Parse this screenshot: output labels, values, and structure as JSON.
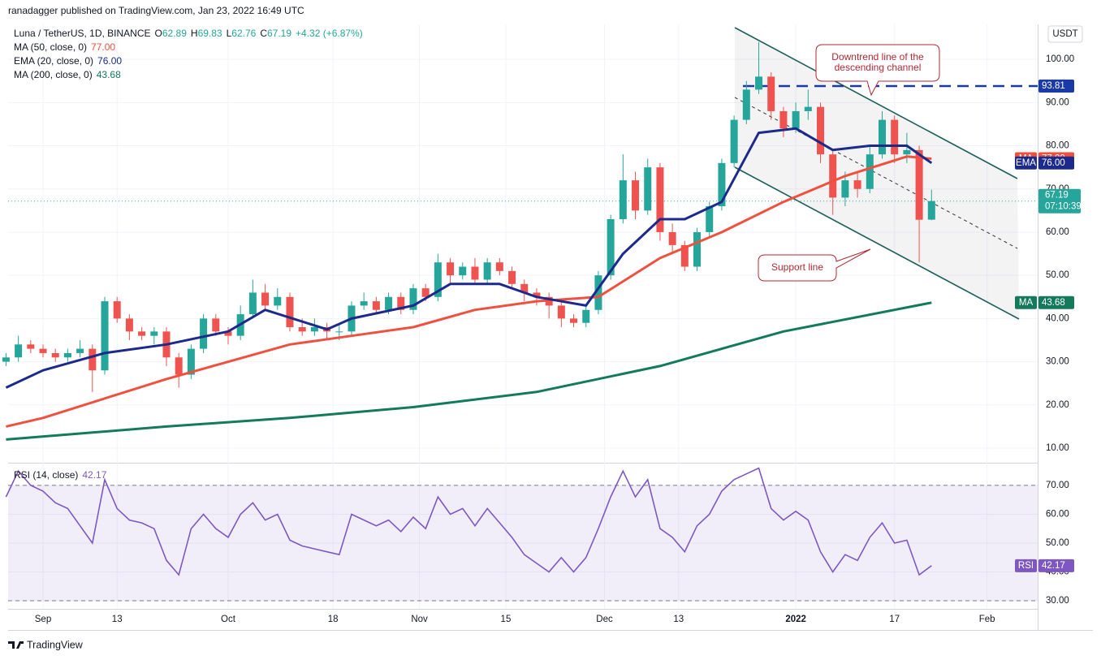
{
  "header": {
    "published": "ranadagger published on TradingView.com, Jan 23, 2022 16:49 UTC",
    "brand": "TradingView"
  },
  "chart_data": [
    {
      "type": "candlestick",
      "title": "Luna / TetherUS, 1D, BINANCE",
      "ohlc_prefixes": [
        "O",
        "H",
        "L",
        "C"
      ],
      "change_label": "+4.32 (+6.87%)",
      "currency": "USDT",
      "countdown": "07:10:39",
      "up_color": "#26a69a",
      "down_color": "#ef5350",
      "x": [
        -6,
        -4,
        -2,
        0,
        2,
        4,
        6,
        8,
        10,
        12,
        14,
        16,
        18,
        20,
        22,
        24,
        26,
        28,
        30,
        32,
        34,
        36,
        38,
        40,
        42,
        44,
        46,
        48,
        50,
        52,
        54,
        56,
        58,
        60,
        62,
        64,
        66,
        68,
        70,
        72,
        74,
        76,
        78,
        80,
        82,
        84,
        86,
        88,
        90,
        92,
        94,
        96,
        98,
        100,
        102,
        104,
        106,
        108,
        110,
        112,
        114,
        116,
        118,
        120,
        122,
        124,
        126,
        128,
        130,
        132,
        134,
        136,
        138,
        140,
        142,
        144
      ],
      "ohlc": [
        [
          30,
          32,
          29,
          31
        ],
        [
          31,
          36,
          30,
          34
        ],
        [
          34,
          35,
          32,
          33
        ],
        [
          33,
          34,
          31,
          32
        ],
        [
          32,
          33,
          30,
          31
        ],
        [
          31,
          33,
          30,
          32
        ],
        [
          32,
          35,
          31,
          33
        ],
        [
          33,
          34,
          23,
          28
        ],
        [
          28,
          45,
          27,
          44
        ],
        [
          44,
          45,
          39,
          40
        ],
        [
          40,
          41,
          35,
          37
        ],
        [
          37,
          38,
          35,
          36
        ],
        [
          36,
          38,
          34,
          37
        ],
        [
          37,
          38,
          29,
          31
        ],
        [
          31,
          32,
          24,
          27
        ],
        [
          27,
          34,
          26,
          33
        ],
        [
          33,
          41,
          32,
          40
        ],
        [
          40,
          41,
          36,
          37
        ],
        [
          37,
          38,
          34,
          36
        ],
        [
          36,
          43,
          35,
          41
        ],
        [
          41,
          49,
          40,
          46
        ],
        [
          46,
          48,
          42,
          43
        ],
        [
          43,
          47,
          42,
          45
        ],
        [
          45,
          46,
          37,
          38
        ],
        [
          38,
          40,
          36,
          37
        ],
        [
          37,
          40,
          36,
          38
        ],
        [
          38,
          39,
          35,
          37
        ],
        [
          37,
          39,
          35,
          37
        ],
        [
          37,
          44,
          36,
          43
        ],
        [
          43,
          46,
          42,
          44
        ],
        [
          44,
          45,
          41,
          42
        ],
        [
          42,
          46,
          41,
          45
        ],
        [
          45,
          46,
          41,
          42
        ],
        [
          42,
          48,
          41,
          47
        ],
        [
          47,
          48,
          44,
          45
        ],
        [
          45,
          55,
          44,
          53
        ],
        [
          53,
          54,
          48,
          50
        ],
        [
          50,
          53,
          49,
          52
        ],
        [
          52,
          54,
          48,
          49
        ],
        [
          49,
          54,
          48,
          53
        ],
        [
          53,
          54,
          50,
          51
        ],
        [
          51,
          52,
          47,
          48
        ],
        [
          48,
          49,
          44,
          46
        ],
        [
          46,
          47,
          43,
          45
        ],
        [
          45,
          46,
          40,
          43
        ],
        [
          43,
          44,
          38,
          40
        ],
        [
          40,
          41,
          38,
          39
        ],
        [
          39,
          43,
          38,
          42
        ],
        [
          42,
          51,
          41,
          50
        ],
        [
          50,
          64,
          49,
          63
        ],
        [
          63,
          78,
          62,
          72
        ],
        [
          72,
          74,
          63,
          65
        ],
        [
          65,
          77,
          64,
          75
        ],
        [
          75,
          76,
          58,
          60
        ],
        [
          60,
          62,
          55,
          57
        ],
        [
          57,
          58,
          51,
          52
        ],
        [
          52,
          61,
          51,
          60
        ],
        [
          60,
          67,
          59,
          66
        ],
        [
          66,
          77,
          65,
          76
        ],
        [
          76,
          87,
          75,
          86
        ],
        [
          86,
          95,
          85,
          93
        ],
        [
          93,
          104,
          92,
          96
        ],
        [
          96,
          97,
          86,
          88
        ],
        [
          88,
          89,
          82,
          84
        ],
        [
          84,
          90,
          83,
          88
        ],
        [
          88,
          93,
          86,
          89
        ],
        [
          89,
          90,
          76,
          78
        ],
        [
          78,
          79,
          64,
          68
        ],
        [
          68,
          74,
          66,
          72
        ],
        [
          72,
          74,
          68,
          70
        ],
        [
          70,
          80,
          69,
          78
        ],
        [
          78,
          88,
          77,
          86
        ],
        [
          86,
          87,
          76,
          78
        ],
        [
          78,
          83,
          76,
          79
        ],
        [
          79,
          80,
          53,
          62.87
        ],
        [
          62.89,
          69.83,
          62.76,
          67.19
        ]
      ],
      "xlim": [
        -5.66,
        161.2
      ],
      "xticks": [
        {
          "value": 0,
          "label": "Sep"
        },
        {
          "value": 12,
          "label": "13"
        },
        {
          "value": 30,
          "label": "Oct"
        },
        {
          "value": 47,
          "label": "18"
        },
        {
          "value": 61,
          "label": "Nov"
        },
        {
          "value": 75,
          "label": "15"
        },
        {
          "value": 91,
          "label": "Dec"
        },
        {
          "value": 103,
          "label": "13"
        },
        {
          "value": 122,
          "label": "2022"
        },
        {
          "value": 138,
          "label": "17"
        },
        {
          "value": 153,
          "label": "Feb"
        }
      ],
      "ylim": [
        6.62,
        108.1
      ],
      "yticks": [
        {
          "value": 10,
          "label": "10.00"
        },
        {
          "value": 20,
          "label": "20.00"
        },
        {
          "value": 30,
          "label": "30.00"
        },
        {
          "value": 40,
          "label": "40.00"
        },
        {
          "value": 50,
          "label": "50.00"
        },
        {
          "value": 60,
          "label": "60.00"
        },
        {
          "value": 70,
          "label": "70.00"
        },
        {
          "value": 80,
          "label": "80.00"
        },
        {
          "value": 90,
          "label": "90.00"
        },
        {
          "value": 100,
          "label": "100.00"
        }
      ],
      "overlays": [
        {
          "name": "MA (50, close, 0)",
          "badge": "MA",
          "color": "#f0513f",
          "x": [
            -6,
            0,
            20,
            40,
            50,
            60,
            70,
            80,
            90,
            100,
            110,
            120,
            130,
            140,
            144
          ],
          "values": [
            15,
            17,
            26,
            34,
            36,
            38,
            42,
            44,
            45,
            54,
            60,
            67,
            73,
            77.5,
            77
          ],
          "value_labels": [
            null,
            null,
            null,
            null,
            null,
            null,
            null,
            null,
            null,
            null,
            null,
            null,
            null,
            null,
            "77.00"
          ]
        },
        {
          "name": "EMA (20, close, 0)",
          "badge": "EMA",
          "color": "#1c2a8c",
          "x": [
            -6,
            0,
            10,
            20,
            30,
            36,
            46,
            50,
            60,
            66,
            74,
            80,
            88,
            94,
            100,
            104,
            110,
            116,
            122,
            128,
            134,
            140,
            144
          ],
          "values": [
            24,
            28,
            32,
            34,
            37,
            42,
            37.5,
            40,
            43,
            48,
            48,
            45,
            43,
            55,
            63,
            63,
            67,
            83,
            84,
            79,
            80,
            80,
            76
          ],
          "value_labels": [
            null,
            null,
            null,
            null,
            null,
            null,
            null,
            null,
            null,
            null,
            null,
            null,
            null,
            null,
            null,
            null,
            null,
            null,
            null,
            null,
            null,
            null,
            "76.00"
          ]
        },
        {
          "name": "MA (200, close, 0)",
          "badge": "MA",
          "color": "#137a5c",
          "x": [
            -6,
            20,
            40,
            60,
            80,
            100,
            120,
            144
          ],
          "values": [
            12,
            15,
            17,
            19.5,
            23,
            29,
            37,
            43.68
          ],
          "value_labels": [
            null,
            null,
            null,
            null,
            null,
            null,
            null,
            "43.68"
          ]
        }
      ],
      "hline": {
        "value": 93.81,
        "color": "#1a3aa8"
      },
      "annotations": [
        [
          "Downtrend line of the",
          "descending channel"
        ],
        [
          "Support line"
        ]
      ]
    },
    {
      "type": "line",
      "name": "RSI (14, close)",
      "badge": "RSI",
      "color": "#7e57c2",
      "x": [
        -6,
        -4,
        -2,
        0,
        2,
        4,
        6,
        8,
        10,
        12,
        14,
        16,
        18,
        20,
        22,
        24,
        26,
        28,
        30,
        32,
        34,
        36,
        38,
        40,
        42,
        44,
        46,
        48,
        50,
        52,
        54,
        56,
        58,
        60,
        62,
        64,
        66,
        68,
        70,
        72,
        74,
        76,
        78,
        80,
        82,
        84,
        86,
        88,
        90,
        92,
        94,
        96,
        98,
        100,
        102,
        104,
        106,
        108,
        110,
        112,
        114,
        116,
        118,
        120,
        122,
        124,
        126,
        128,
        130,
        132,
        134,
        136,
        138,
        140,
        142,
        144
      ],
      "values": [
        66,
        75,
        70,
        68,
        64,
        62,
        56,
        50,
        72,
        62,
        58,
        57,
        55,
        44,
        39,
        55,
        60,
        55,
        52,
        60,
        64,
        58,
        60,
        51,
        49,
        48,
        47,
        46,
        60,
        58,
        56,
        58,
        54,
        59,
        55,
        66,
        60,
        62,
        56,
        62,
        57,
        52,
        46,
        43,
        40,
        45,
        40,
        45,
        55,
        66,
        75,
        66,
        72,
        55,
        52,
        47,
        56,
        60,
        68,
        72,
        74,
        76,
        62,
        58,
        61,
        58,
        47,
        40,
        46,
        44,
        52,
        57,
        50,
        51,
        39,
        42.17
      ],
      "ylim": [
        27.2,
        77.3
      ],
      "yticks": [
        {
          "value": 30,
          "label": "30.00"
        },
        {
          "value": 40,
          "label": "40.00"
        },
        {
          "value": 50,
          "label": "50.00"
        },
        {
          "value": 60,
          "label": "60.00"
        },
        {
          "value": 70,
          "label": "70.00"
        }
      ],
      "band": [
        30,
        70
      ]
    }
  ]
}
